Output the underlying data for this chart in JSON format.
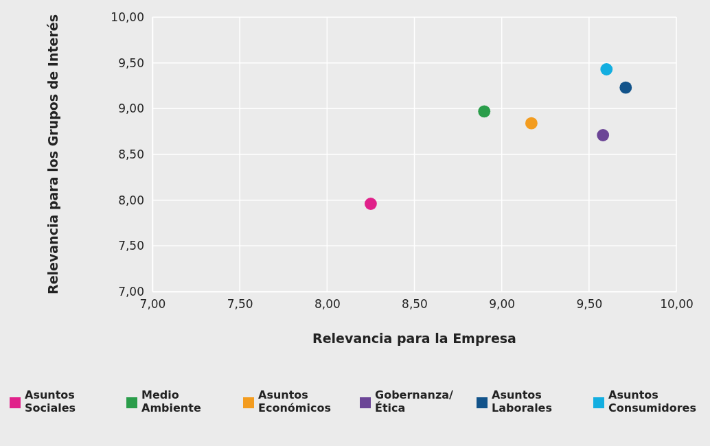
{
  "chart_data": {
    "type": "scatter",
    "xlabel": "Relevancia para la Empresa",
    "ylabel": "Relevancia para los Grupos de Interés",
    "xlim": [
      7,
      10
    ],
    "ylim": [
      7,
      10
    ],
    "xticks": [
      {
        "value": 7,
        "label": "7,00"
      },
      {
        "value": 7.5,
        "label": "7,50"
      },
      {
        "value": 8,
        "label": "8,00"
      },
      {
        "value": 8.5,
        "label": "8,50"
      },
      {
        "value": 9,
        "label": "9,00"
      },
      {
        "value": 9.5,
        "label": "9,50"
      },
      {
        "value": 10,
        "label": "10,00"
      }
    ],
    "yticks": [
      {
        "value": 7,
        "label": "7,00"
      },
      {
        "value": 7.5,
        "label": "7,50"
      },
      {
        "value": 8,
        "label": "8,00"
      },
      {
        "value": 8.5,
        "label": "8,50"
      },
      {
        "value": 9,
        "label": "9,00"
      },
      {
        "value": 9.5,
        "label": "9,50"
      },
      {
        "value": 10,
        "label": "10,00"
      }
    ],
    "grid": true,
    "legend": "bottom",
    "marker": "circle",
    "series": [
      {
        "name": "Asuntos Sociales",
        "color": "#e0218a",
        "x": [
          8.25
        ],
        "values": [
          7.96
        ]
      },
      {
        "name": "Medio Ambiente",
        "color": "#2a9d4a",
        "x": [
          8.9
        ],
        "values": [
          8.97
        ]
      },
      {
        "name": "Asuntos Económicos",
        "color": "#f39c1f",
        "x": [
          9.17
        ],
        "values": [
          8.84
        ]
      },
      {
        "name": "Gobernanza/ Ética",
        "color": "#6b4596",
        "x": [
          9.58
        ],
        "values": [
          8.71
        ]
      },
      {
        "name": "Asuntos Laborales",
        "color": "#12538a",
        "x": [
          9.71
        ],
        "values": [
          9.23
        ]
      },
      {
        "name": "Asuntos Consumidores",
        "color": "#13aee0",
        "x": [
          9.6
        ],
        "values": [
          9.43
        ]
      }
    ]
  }
}
